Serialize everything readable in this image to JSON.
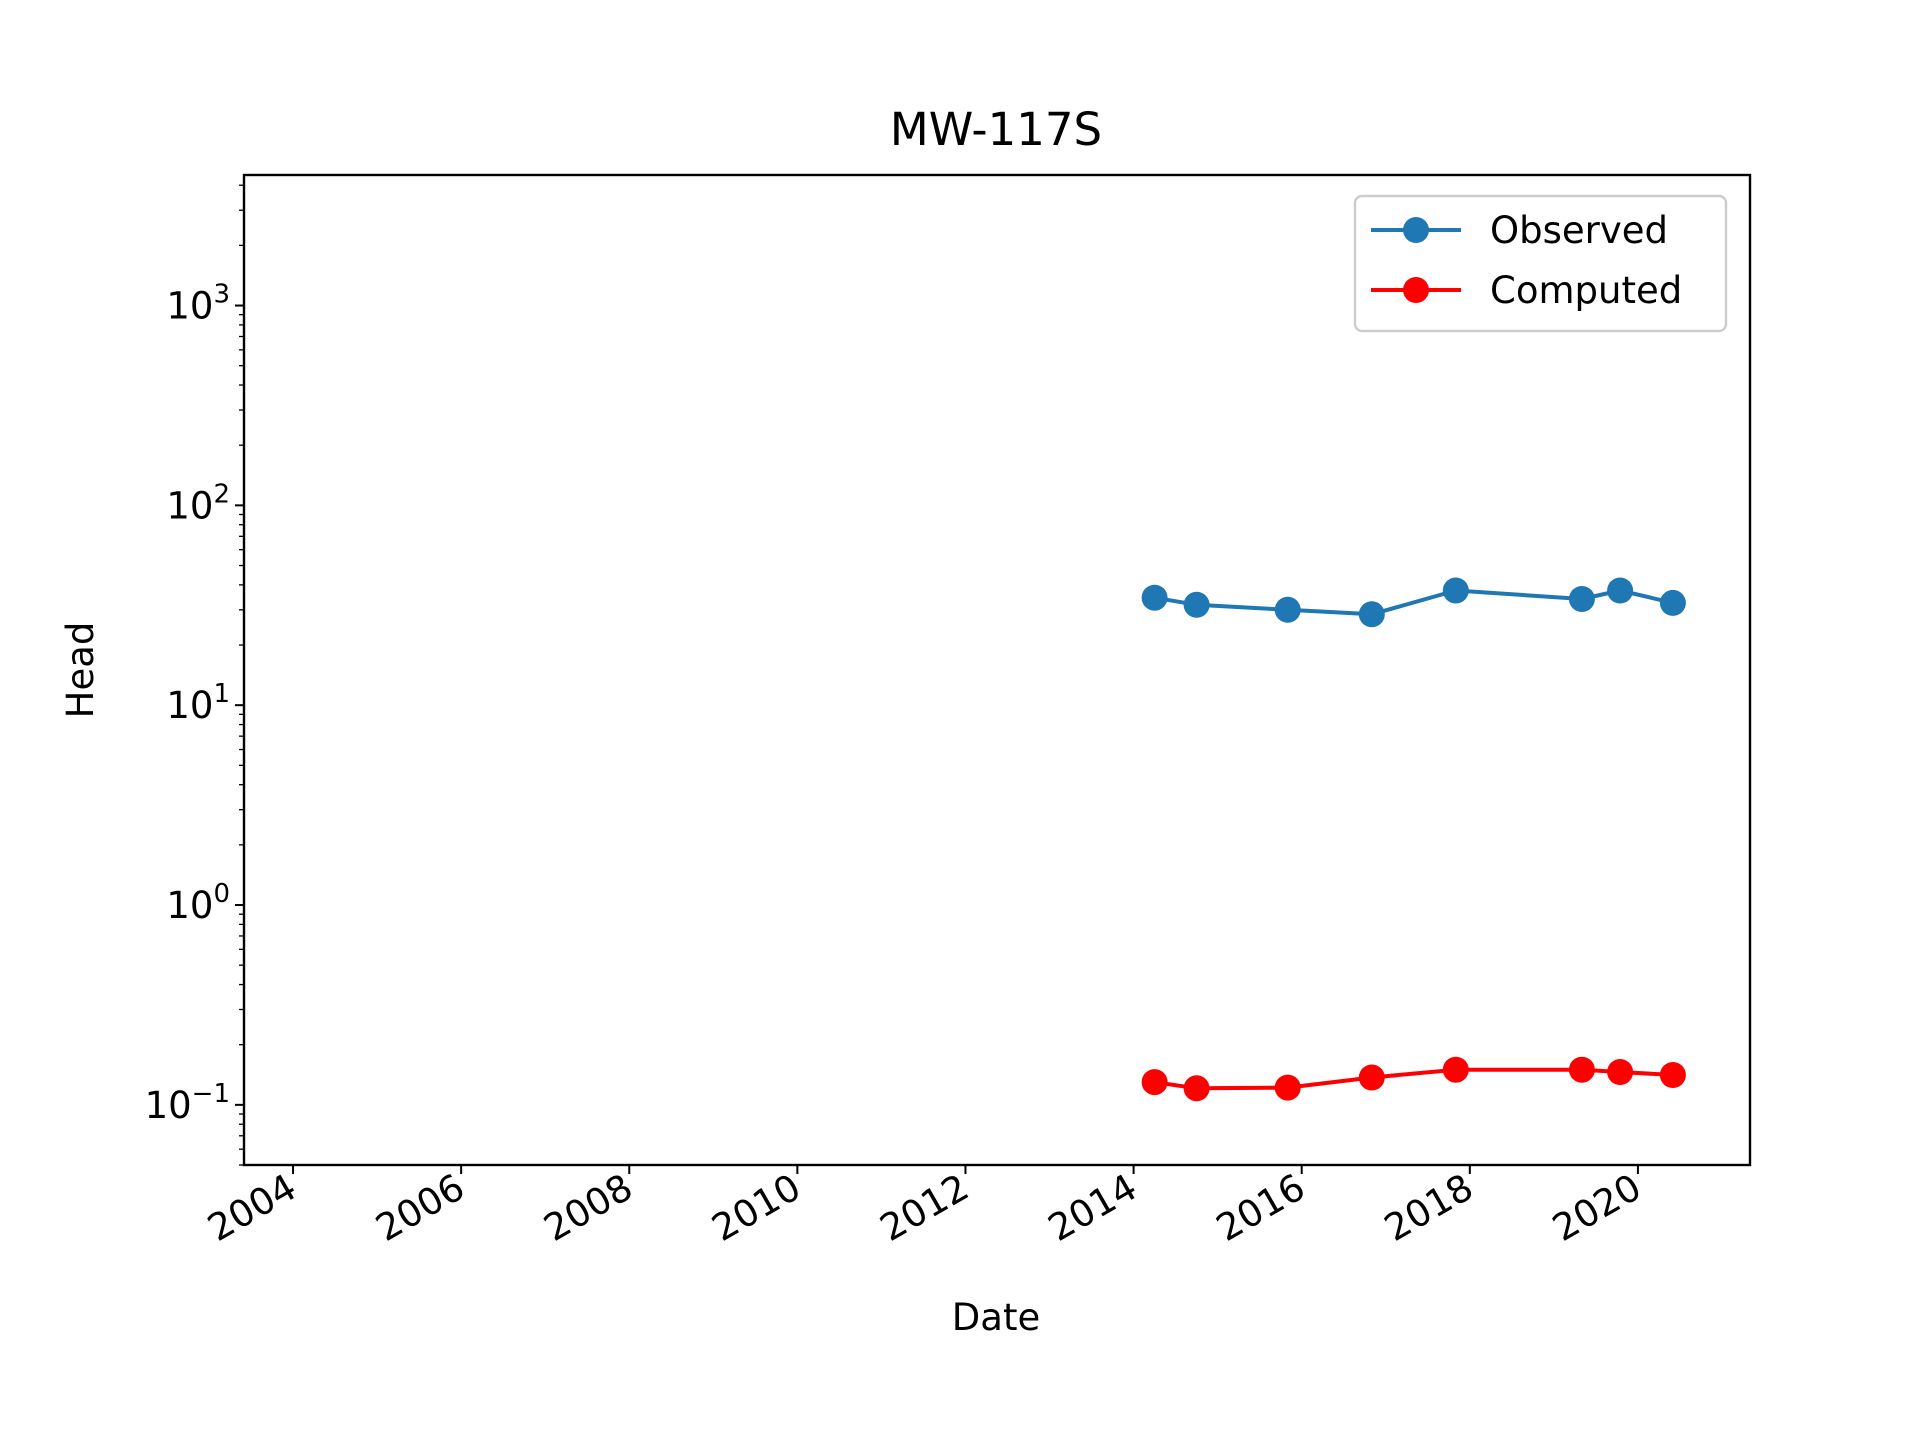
{
  "chart_data": {
    "type": "line",
    "title": "MW-117S",
    "xlabel": "Date",
    "ylabel": "Head",
    "x_scale": "time",
    "y_scale": "log",
    "xlim": [
      "2003-06-01",
      "2021-05-01"
    ],
    "ylim": [
      0.05,
      4500
    ],
    "x_ticks": [
      "2004",
      "2006",
      "2008",
      "2010",
      "2012",
      "2014",
      "2016",
      "2018",
      "2020"
    ],
    "y_ticks": [
      {
        "value": 0.1,
        "base": "10",
        "exp": "−1"
      },
      {
        "value": 1,
        "base": "10",
        "exp": "0"
      },
      {
        "value": 10,
        "base": "10",
        "exp": "1"
      },
      {
        "value": 100,
        "base": "10",
        "exp": "2"
      },
      {
        "value": 1000,
        "base": "10",
        "exp": "3"
      }
    ],
    "grid": false,
    "legend_position": "top-right",
    "series": [
      {
        "name": "Observed",
        "color": "#1f77b4",
        "marker": "circle",
        "x": [
          "2014-04-01",
          "2014-10-01",
          "2015-11-01",
          "2016-11-01",
          "2017-11-01",
          "2019-05-01",
          "2019-10-15",
          "2020-06-01"
        ],
        "values": [
          34.5,
          31.8,
          30.0,
          28.5,
          37.5,
          34.0,
          37.5,
          32.5
        ]
      },
      {
        "name": "Computed",
        "color": "#ff0000",
        "marker": "circle",
        "x": [
          "2014-04-01",
          "2014-10-01",
          "2015-11-01",
          "2016-11-01",
          "2017-11-01",
          "2019-05-01",
          "2019-10-15",
          "2020-06-01"
        ],
        "values": [
          0.13,
          0.121,
          0.122,
          0.137,
          0.15,
          0.15,
          0.146,
          0.141
        ]
      }
    ]
  }
}
